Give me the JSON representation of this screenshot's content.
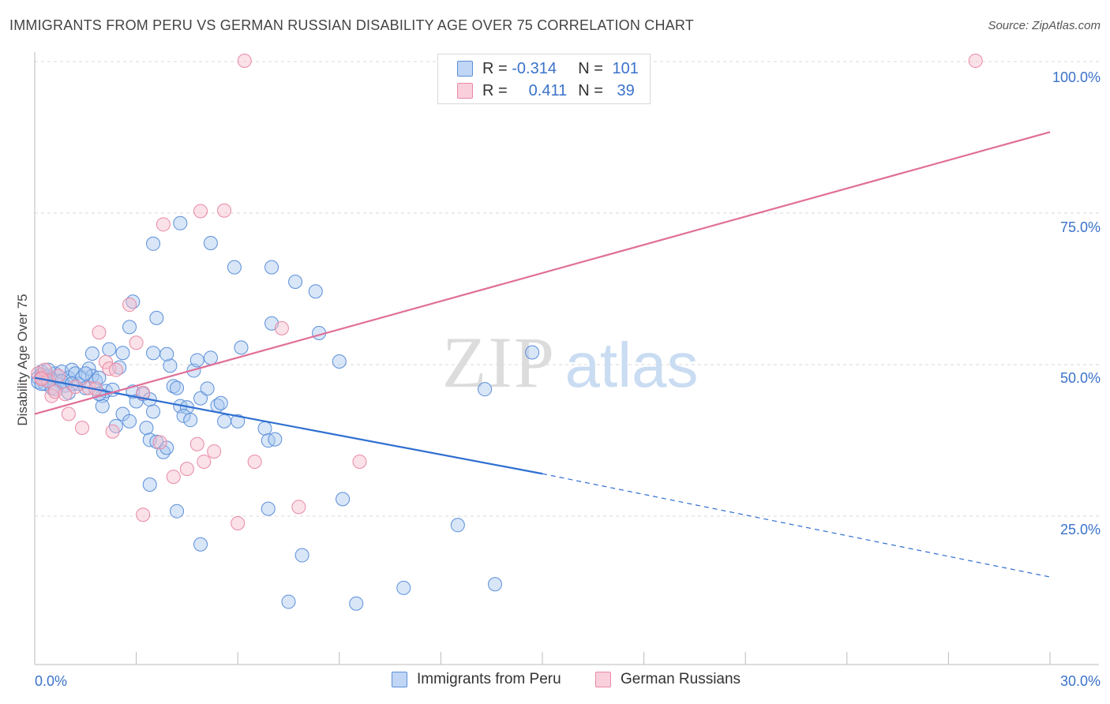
{
  "header": {
    "title": "IMMIGRANTS FROM PERU VS GERMAN RUSSIAN DISABILITY AGE OVER 75 CORRELATION CHART",
    "source": "Source: ZipAtlas.com"
  },
  "watermark": {
    "zip": "ZIP",
    "atlas": "atlas"
  },
  "colors": {
    "blue_fill": "#a9c8f0",
    "blue_stroke": "#5b8fd9",
    "blue_line": "#2f6fd1",
    "pink_fill": "#f7bccd",
    "pink_stroke": "#e88aa6",
    "pink_line": "#e06f98",
    "grid": "#d9d9d9",
    "tick_text": "#3a72c9"
  },
  "legend": {
    "rows": [
      {
        "r_label": "R = ",
        "r_value": "-0.314",
        "n_label": "N = ",
        "n_value": "101"
      },
      {
        "r_label": "R = ",
        "r_value": "0.411",
        "n_label": "N = ",
        "n_value": "39"
      }
    ]
  },
  "chart_data": {
    "type": "scatter",
    "title": "IMMIGRANTS FROM PERU VS GERMAN RUSSIAN DISABILITY AGE OVER 75 CORRELATION CHART",
    "xlabel": "",
    "ylabel": "Disability Age Over 75",
    "xlim": [
      0,
      30
    ],
    "ylim": [
      0,
      102
    ],
    "x_tick_labels": [
      "0.0%",
      "30.0%"
    ],
    "y_ticks": [
      25,
      50,
      75,
      100
    ],
    "y_tick_labels": [
      "25.0%",
      "50.0%",
      "75.0%",
      "100.0%"
    ],
    "grid": true,
    "series": [
      {
        "name": "Immigrants from Peru",
        "color": "blue",
        "r": -0.314,
        "n": 101,
        "trend": {
          "x0": 0,
          "y0": 47.5,
          "x1": 15,
          "y1": 31.6,
          "dash_to_x": 30,
          "dash_to_y": 14.5
        },
        "points": [
          [
            0.1,
            47.5
          ],
          [
            0.2,
            48.5
          ],
          [
            0.1,
            46.8
          ],
          [
            0.3,
            47.2
          ],
          [
            0.2,
            48
          ],
          [
            0.4,
            47.8
          ],
          [
            0.5,
            47.3
          ],
          [
            0.3,
            46.5
          ],
          [
            0.6,
            48.2
          ],
          [
            0.4,
            48.8
          ],
          [
            0.7,
            47
          ],
          [
            0.5,
            45.8
          ],
          [
            0.8,
            48.5
          ],
          [
            0.9,
            46.2
          ],
          [
            1.0,
            47.5
          ],
          [
            1.1,
            48.8
          ],
          [
            1.2,
            48.2
          ],
          [
            1.3,
            46.5
          ],
          [
            0.6,
            45.6
          ],
          [
            1.0,
            45
          ],
          [
            1.4,
            47.5
          ],
          [
            1.5,
            45.8
          ],
          [
            1.6,
            49
          ],
          [
            1.7,
            47.8
          ],
          [
            1.8,
            47
          ],
          [
            1.9,
            47.5
          ],
          [
            2.0,
            44.5
          ],
          [
            2.1,
            45.3
          ],
          [
            2.3,
            45.5
          ],
          [
            2.5,
            49.2
          ],
          [
            1.7,
            51.5
          ],
          [
            2.2,
            52.2
          ],
          [
            2.6,
            51.6
          ],
          [
            2.0,
            42.8
          ],
          [
            2.4,
            39.5
          ],
          [
            2.6,
            41.5
          ],
          [
            2.8,
            40.3
          ],
          [
            2.9,
            45.2
          ],
          [
            3.0,
            43.6
          ],
          [
            3.2,
            44.8
          ],
          [
            3.4,
            43.9
          ],
          [
            3.5,
            41.9
          ],
          [
            3.3,
            39.2
          ],
          [
            3.4,
            37.2
          ],
          [
            3.6,
            36.9
          ],
          [
            3.8,
            35.2
          ],
          [
            3.9,
            35.9
          ],
          [
            4.0,
            49.5
          ],
          [
            4.1,
            46.1
          ],
          [
            4.2,
            45.8
          ],
          [
            4.3,
            42.8
          ],
          [
            4.5,
            42.6
          ],
          [
            4.4,
            41.2
          ],
          [
            4.6,
            40.5
          ],
          [
            4.7,
            48.7
          ],
          [
            4.8,
            50.4
          ],
          [
            4.9,
            44.1
          ],
          [
            5.1,
            45.7
          ],
          [
            5.2,
            50.8
          ],
          [
            5.4,
            42.9
          ],
          [
            5.5,
            43.3
          ],
          [
            5.6,
            40.3
          ],
          [
            6.0,
            40.3
          ],
          [
            6.1,
            52.5
          ],
          [
            6.8,
            39.1
          ],
          [
            6.9,
            37.1
          ],
          [
            7.1,
            37.3
          ],
          [
            2.8,
            55.9
          ],
          [
            3.6,
            57.4
          ],
          [
            3.5,
            51.6
          ],
          [
            3.9,
            51.4
          ],
          [
            2.9,
            60.1
          ],
          [
            3.5,
            69.7
          ],
          [
            4.3,
            73.1
          ],
          [
            5.2,
            69.8
          ],
          [
            5.9,
            65.8
          ],
          [
            7.0,
            65.8
          ],
          [
            7.7,
            63.4
          ],
          [
            8.3,
            61.8
          ],
          [
            7.0,
            56.5
          ],
          [
            8.4,
            54.9
          ],
          [
            9.0,
            50.2
          ],
          [
            14.7,
            51.7
          ],
          [
            13.3,
            45.6
          ],
          [
            3.4,
            29.8
          ],
          [
            4.2,
            25.4
          ],
          [
            4.9,
            19.9
          ],
          [
            6.9,
            25.8
          ],
          [
            7.9,
            18.1
          ],
          [
            9.1,
            27.4
          ],
          [
            7.5,
            10.4
          ],
          [
            9.5,
            10.1
          ],
          [
            10.9,
            12.7
          ],
          [
            12.5,
            23.1
          ],
          [
            13.6,
            13.3
          ],
          [
            0.4,
            47
          ],
          [
            0.8,
            46.9
          ],
          [
            1.1,
            46.5
          ],
          [
            1.5,
            48.2
          ],
          [
            0.2,
            46.5
          ],
          [
            1.9,
            44.8
          ]
        ]
      },
      {
        "name": "German Russians",
        "color": "pink",
        "r": 0.411,
        "n": 39,
        "trend": {
          "x0": 0,
          "y0": 41.5,
          "x1": 30,
          "y1": 88.2
        },
        "points": [
          [
            0.1,
            48.2
          ],
          [
            0.2,
            47.5
          ],
          [
            0.3,
            48.8
          ],
          [
            0.4,
            47
          ],
          [
            0.5,
            44.5
          ],
          [
            0.6,
            45.2
          ],
          [
            0.7,
            47.8
          ],
          [
            0.9,
            44.8
          ],
          [
            1.0,
            41.5
          ],
          [
            1.2,
            46
          ],
          [
            1.4,
            39.2
          ],
          [
            1.6,
            45.8
          ],
          [
            1.8,
            45.7
          ],
          [
            1.9,
            55
          ],
          [
            2.1,
            50.1
          ],
          [
            2.2,
            49
          ],
          [
            2.4,
            48.8
          ],
          [
            2.3,
            38.6
          ],
          [
            2.8,
            59.6
          ],
          [
            3.0,
            53.3
          ],
          [
            3.2,
            45
          ],
          [
            3.7,
            36.8
          ],
          [
            4.1,
            31.1
          ],
          [
            4.5,
            32.4
          ],
          [
            4.8,
            36.5
          ],
          [
            5.0,
            33.6
          ],
          [
            5.3,
            35.3
          ],
          [
            4.9,
            75.1
          ],
          [
            5.6,
            75.2
          ],
          [
            3.8,
            72.9
          ],
          [
            3.2,
            24.8
          ],
          [
            6.0,
            23.4
          ],
          [
            6.5,
            33.6
          ],
          [
            7.3,
            55.7
          ],
          [
            7.8,
            26.1
          ],
          [
            9.6,
            33.6
          ],
          [
            6.2,
            100
          ],
          [
            27.8,
            100
          ],
          [
            0.2,
            47.3
          ]
        ]
      }
    ]
  },
  "bottom_legend": {
    "items": [
      {
        "label": "Immigrants from Peru"
      },
      {
        "label": "German Russians"
      }
    ]
  }
}
